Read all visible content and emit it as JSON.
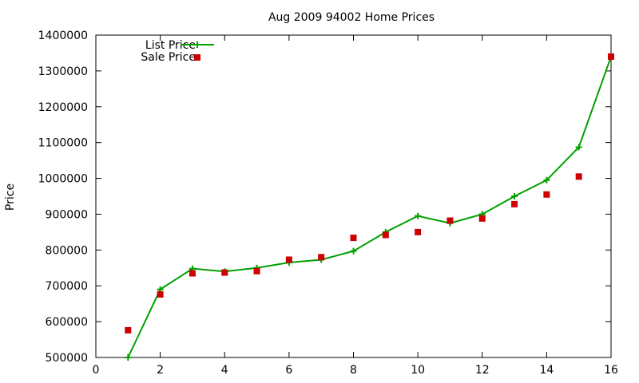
{
  "chart_data": {
    "type": "line",
    "title": "Aug 2009 94002 Home Prices",
    "xlabel": "",
    "ylabel": "Price",
    "xlim": [
      0,
      16
    ],
    "ylim": [
      500000,
      1400000
    ],
    "xticks": [
      0,
      2,
      4,
      6,
      8,
      10,
      12,
      14,
      16
    ],
    "yticks": [
      500000,
      600000,
      700000,
      800000,
      900000,
      1000000,
      1100000,
      1200000,
      1300000,
      1400000
    ],
    "x_tick_labels": [
      "0",
      "2",
      "4",
      "6",
      "8",
      "10",
      "12",
      "14",
      "16"
    ],
    "y_tick_labels": [
      "500000",
      "600000",
      "700000",
      "800000",
      "900000",
      "1000000",
      "1100000",
      "1200000",
      "1300000",
      "1400000"
    ],
    "grid": false,
    "legend_position": "top-left",
    "series": [
      {
        "name": "List Price",
        "kind": "line+cross",
        "color": "#00a000",
        "x": [
          1,
          2,
          3,
          4,
          5,
          6,
          7,
          8,
          9,
          10,
          11,
          12,
          13,
          14,
          15,
          16
        ],
        "y": [
          500000,
          690000,
          748000,
          740000,
          750000,
          765000,
          773000,
          797000,
          850000,
          895000,
          875000,
          900000,
          950000,
          995000,
          1087000,
          1340000
        ]
      },
      {
        "name": "Sale Price",
        "kind": "square",
        "color": "#cc0000",
        "x": [
          1,
          2,
          3,
          4,
          5,
          6,
          7,
          8,
          9,
          10,
          11,
          12,
          13,
          14,
          15,
          16
        ],
        "y": [
          576000,
          676000,
          735000,
          737000,
          741000,
          773000,
          780000,
          834000,
          842000,
          850000,
          882000,
          888000,
          928000,
          955000,
          1005000,
          1340000
        ]
      }
    ]
  }
}
